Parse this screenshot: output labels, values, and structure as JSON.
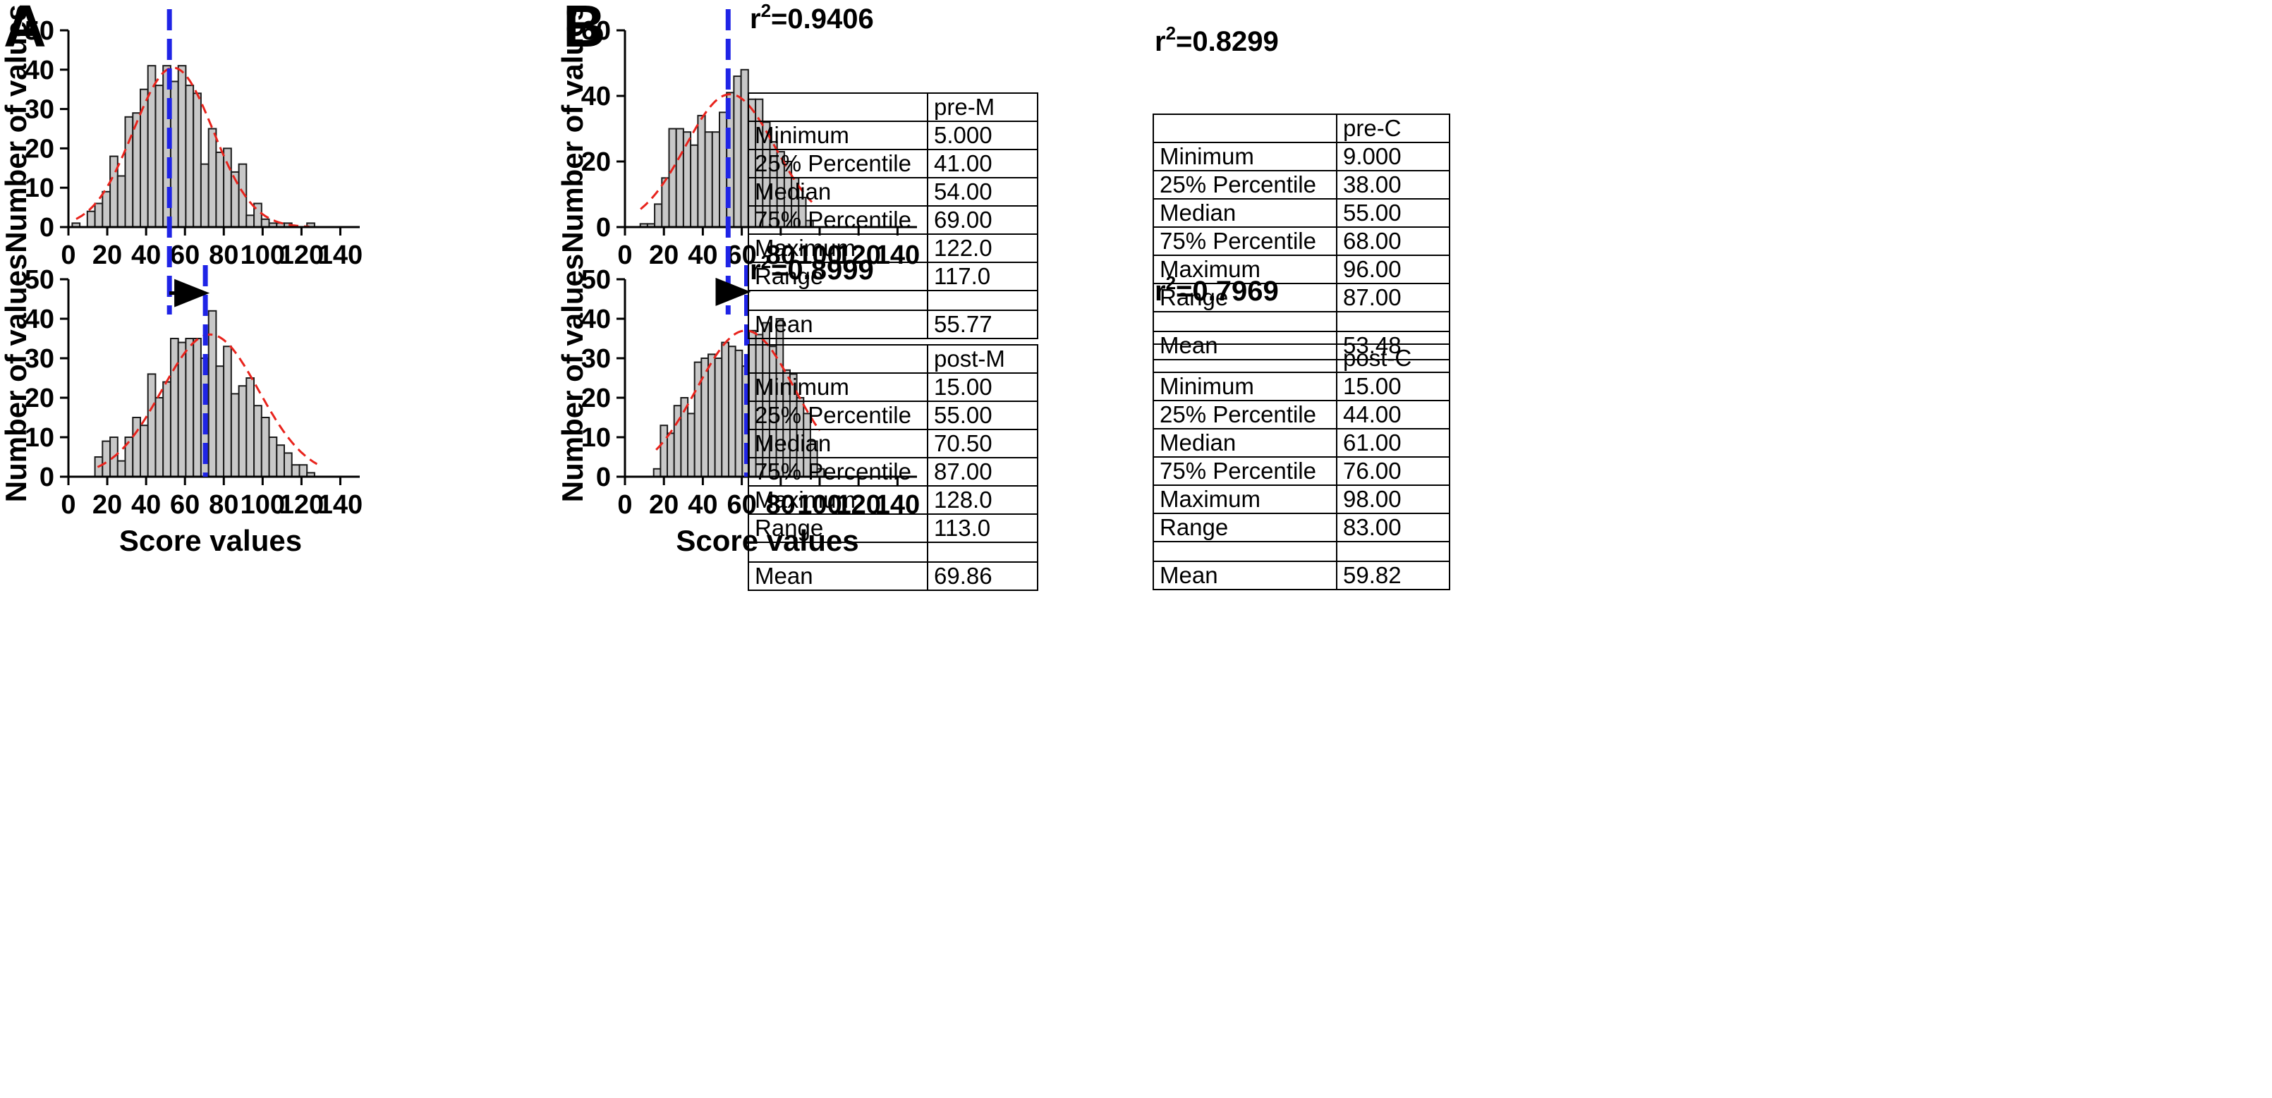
{
  "figure": {
    "panel_letters": [
      "A",
      "B"
    ]
  },
  "chart_data": [
    {
      "type": "bar",
      "id": "A-pre",
      "panel": "A",
      "title": "",
      "xlabel": "",
      "ylabel": "Number of values",
      "xlim": [
        0,
        150
      ],
      "ylim": [
        0,
        50
      ],
      "xticks": [
        0,
        20,
        40,
        60,
        80,
        100,
        120,
        140
      ],
      "yticks": [
        0,
        10,
        20,
        30,
        40,
        50
      ],
      "bin_width": 3.9,
      "bin_centers": [
        3.9,
        11.7,
        15.6,
        19.5,
        23.4,
        27.3,
        31.2,
        35.1,
        39.0,
        42.9,
        46.8,
        50.7,
        54.6,
        58.5,
        62.4,
        66.3,
        70.2,
        74.1,
        78.0,
        81.9,
        85.8,
        89.7,
        93.6,
        97.5,
        101.4,
        105.3,
        109.2,
        113.1,
        124.8
      ],
      "values": [
        1,
        4,
        6,
        9,
        18,
        13,
        28,
        29,
        35,
        41,
        36,
        41,
        37,
        41,
        36,
        34,
        16,
        25,
        19,
        20,
        14,
        16,
        3,
        6,
        2,
        1,
        1,
        1,
        1
      ],
      "fit": {
        "type": "gaussian",
        "amplitude": 40.5,
        "mean": 54,
        "sd": 20.5,
        "x_range": [
          4,
          124
        ],
        "r2_label": "r",
        "r2_sup": "2",
        "r2_value": "=0.9406"
      },
      "mean_line": 52,
      "stats_table": {
        "header": "pre-M",
        "rows": [
          [
            "Minimum",
            "5.000"
          ],
          [
            "25% Percentile",
            "41.00"
          ],
          [
            "Median",
            "54.00"
          ],
          [
            "75% Percentile",
            "69.00"
          ],
          [
            "Maximum",
            "122.0"
          ],
          [
            "Range",
            "117.0"
          ],
          [
            "",
            ""
          ],
          [
            "Mean",
            "55.77"
          ]
        ]
      }
    },
    {
      "type": "bar",
      "id": "A-post",
      "panel": "A",
      "title": "",
      "xlabel": "Score values",
      "ylabel": "Number of values",
      "xlim": [
        0,
        150
      ],
      "ylim": [
        0,
        50
      ],
      "xticks": [
        0,
        20,
        40,
        60,
        80,
        100,
        120,
        140
      ],
      "yticks": [
        0,
        10,
        20,
        30,
        40,
        50
      ],
      "bin_width": 3.9,
      "bin_centers": [
        15.6,
        19.5,
        23.4,
        27.3,
        31.2,
        35.1,
        39.0,
        42.9,
        46.8,
        50.7,
        54.6,
        58.5,
        62.4,
        66.3,
        70.2,
        74.1,
        78.0,
        81.9,
        85.8,
        89.7,
        93.6,
        97.5,
        101.4,
        105.3,
        109.2,
        113.1,
        117.0,
        120.9,
        124.8
      ],
      "values": [
        5,
        9,
        10,
        4,
        10,
        15,
        13,
        26,
        20,
        24,
        35,
        34,
        35,
        35,
        30,
        42,
        28,
        33,
        21,
        23,
        25,
        18,
        15,
        10,
        8,
        6,
        3,
        3,
        1
      ],
      "fit": {
        "type": "gaussian",
        "amplitude": 36,
        "mean": 73,
        "sd": 25,
        "x_range": [
          15,
          128
        ],
        "r2_label": "r",
        "r2_sup": "2",
        "r2_value": "=0.8999"
      },
      "mean_line": 70.5,
      "shift_arrow": {
        "from": 52,
        "to": 70.5,
        "y": 46.5
      },
      "stats_table": {
        "header": "post-M",
        "rows": [
          [
            "Minimum",
            "15.00"
          ],
          [
            "25% Percentile",
            "55.00"
          ],
          [
            "Median",
            "70.50"
          ],
          [
            "75% Percentile",
            "87.00"
          ],
          [
            "Maximum",
            "128.0"
          ],
          [
            "Range",
            "113.0"
          ],
          [
            "",
            ""
          ],
          [
            "Mean",
            "69.86"
          ]
        ]
      }
    },
    {
      "type": "bar",
      "id": "B-pre",
      "panel": "B",
      "title": "",
      "xlabel": "",
      "ylabel": "Number of values",
      "xlim": [
        0,
        150
      ],
      "ylim": [
        0,
        60
      ],
      "xticks": [
        0,
        20,
        40,
        60,
        80,
        100,
        120,
        140
      ],
      "yticks": [
        0,
        20,
        40,
        60
      ],
      "bin_width": 3.7,
      "bin_centers": [
        9.7,
        13.4,
        17.1,
        20.8,
        24.5,
        28.2,
        31.9,
        35.6,
        39.3,
        43.0,
        46.7,
        50.4,
        54.1,
        57.8,
        61.5,
        65.2,
        68.9,
        72.6,
        76.3,
        80.0,
        83.7,
        87.4,
        91.1,
        94.8
      ],
      "values": [
        1,
        1,
        7,
        15,
        30,
        30,
        29,
        25,
        34,
        29,
        29,
        35,
        41,
        46,
        48,
        39,
        39,
        32,
        26,
        23,
        20,
        15,
        9,
        2
      ],
      "fit": {
        "type": "gaussian",
        "amplitude": 40.5,
        "mean": 54,
        "sd": 23,
        "x_range": [
          8,
          96
        ],
        "r2_label": "r",
        "r2_sup": "2",
        "r2_value": "=0.8299"
      },
      "mean_line": 53,
      "stats_table": {
        "header": "pre-C",
        "rows": [
          [
            "Minimum",
            "9.000"
          ],
          [
            "25% Percentile",
            "38.00"
          ],
          [
            "Median",
            "55.00"
          ],
          [
            "75% Percentile",
            "68.00"
          ],
          [
            "Maximum",
            "96.00"
          ],
          [
            "Range",
            "87.00"
          ],
          [
            "",
            ""
          ],
          [
            "Mean",
            "53.48"
          ]
        ]
      }
    },
    {
      "type": "bar",
      "id": "B-post",
      "panel": "B",
      "title": "",
      "xlabel": "Score values",
      "ylabel": "Number of values",
      "xlim": [
        0,
        150
      ],
      "ylim": [
        0,
        50
      ],
      "xticks": [
        0,
        20,
        40,
        60,
        80,
        100,
        120,
        140
      ],
      "yticks": [
        0,
        10,
        20,
        30,
        40,
        50
      ],
      "bin_width": 3.5,
      "bin_centers": [
        16.5,
        20.0,
        23.5,
        27.0,
        30.5,
        34.0,
        37.5,
        41.0,
        44.5,
        48.0,
        51.5,
        55.0,
        58.5,
        62.0,
        65.5,
        69.0,
        72.5,
        76.0,
        79.5,
        83.0,
        86.5,
        90.0,
        93.5,
        97.0,
        100.5
      ],
      "values": [
        2,
        13,
        11,
        18,
        20,
        16,
        29,
        30,
        31,
        30,
        34,
        33,
        32,
        28,
        37,
        36,
        39,
        33,
        40,
        27,
        26,
        20,
        16,
        9,
        2
      ],
      "fit": {
        "type": "gaussian",
        "amplitude": 37,
        "mean": 62,
        "sd": 25,
        "x_range": [
          16,
          100
        ],
        "r2_label": "r",
        "r2_sup": "2",
        "r2_value": "=0.7969"
      },
      "mean_line": 62.5,
      "shift_arrow": {
        "from": 53,
        "to": 62.5,
        "y": 46.8
      },
      "stats_table": {
        "header": "post-C",
        "rows": [
          [
            "Minimum",
            "15.00"
          ],
          [
            "25% Percentile",
            "44.00"
          ],
          [
            "Median",
            "61.00"
          ],
          [
            "75% Percentile",
            "76.00"
          ],
          [
            "Maximum",
            "98.00"
          ],
          [
            "Range",
            "83.00"
          ],
          [
            "",
            ""
          ],
          [
            "Mean",
            "59.82"
          ]
        ]
      }
    }
  ],
  "colors": {
    "bar_fill": "#c8c8c8",
    "bar_stroke": "#1a1a1a",
    "fit_line": "#e8231c",
    "mean_line": "#1f24e6",
    "axis": "#000000",
    "arrow": "#000000"
  }
}
